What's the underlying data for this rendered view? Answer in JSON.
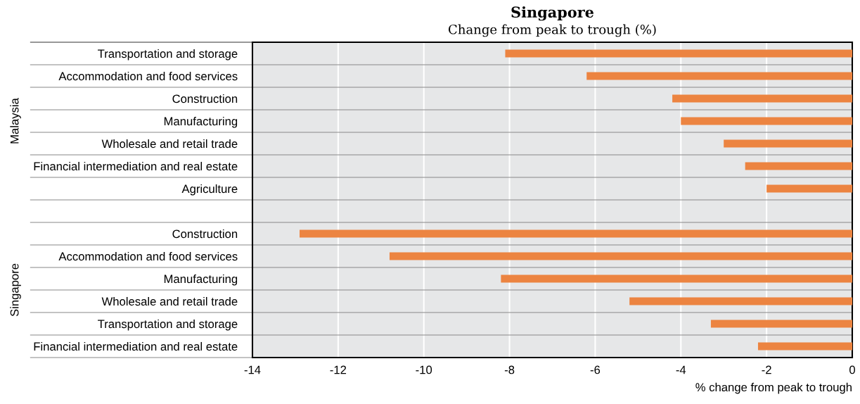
{
  "chart_data": {
    "type": "bar",
    "orientation": "horizontal",
    "title": "Singapore",
    "subtitle": "Change from peak to trough (%)",
    "xlabel": "% change from peak to trough",
    "categories": [
      "Transportation and storage",
      "Accommodation and food services",
      "Construction",
      "Manufacturing",
      "Wholesale and retail trade",
      "Financial intermediation and real estate",
      "Agriculture",
      null,
      "Construction",
      "Accommodation and food services",
      "Manufacturing",
      "Wholesale and retail trade",
      "Transportation and storage",
      "Financial intermediation and real estate"
    ],
    "values": [
      -8.1,
      -6.2,
      -4.2,
      -4.0,
      -3.0,
      -2.5,
      -2.0,
      null,
      -12.9,
      -10.8,
      -8.2,
      -5.2,
      -3.3,
      -2.2
    ],
    "color": "#ec8441",
    "xlim": [
      -14,
      0
    ],
    "xticks": [
      -14,
      -12,
      -10,
      -8,
      -6,
      -4,
      -2,
      0
    ],
    "grid": "x",
    "annotations": [
      "Malaysia",
      "Singapore"
    ]
  }
}
